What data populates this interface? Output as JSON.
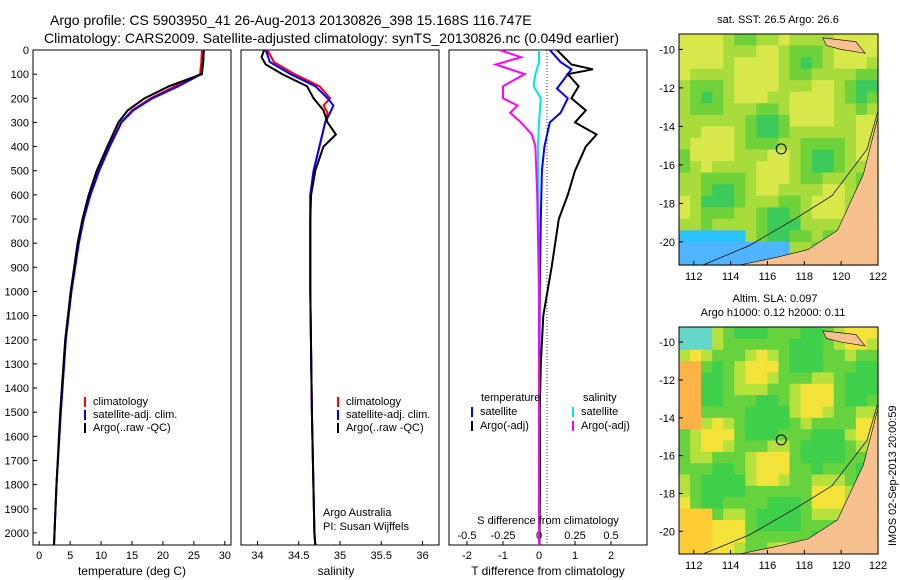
{
  "header": {
    "line1": "Argo profile: CS 5903950_41 26-Aug-2013 20130826_398 15.168S 116.747E",
    "line2": "Climatology: CARS2009. Satellite-adjusted climatology: synTS_20130826.nc (0.049d earlier)"
  },
  "footer_stamp": "IMOS 02-Sep-2013 20:00:59",
  "colors": {
    "climatology": "#ff0000",
    "satellite": "#0000ff",
    "argo": "#000000",
    "salinity_sat": "#00e5e5",
    "salinity_argo": "#ff00ff"
  },
  "chart_data": [
    {
      "type": "line",
      "panel": "temperature",
      "xlabel": "temperature (deg C)",
      "ylabel": "",
      "xlim": [
        -1,
        31
      ],
      "ylim": [
        2050,
        0
      ],
      "xticks": [
        "0",
        "5",
        "10",
        "15",
        "20",
        "25",
        "30"
      ],
      "yticks": [
        "0",
        "100",
        "200",
        "300",
        "400",
        "500",
        "600",
        "700",
        "800",
        "900",
        "1000",
        "1100",
        "1200",
        "1300",
        "1400",
        "1500",
        "1600",
        "1700",
        "1800",
        "1900",
        "2000"
      ],
      "legend": [
        "climatology",
        "satellite-adj. clim.",
        "Argo(..raw -QC)"
      ],
      "series": [
        {
          "name": "climatology",
          "depth": [
            0,
            50,
            100,
            150,
            200,
            250,
            300,
            400,
            500,
            600,
            700,
            800,
            1000,
            1200,
            1500,
            1800,
            2050
          ],
          "values": [
            26.3,
            26.2,
            26.0,
            22.0,
            18.0,
            15.0,
            13.2,
            11.3,
            9.6,
            8.2,
            7.2,
            6.4,
            5.2,
            4.3,
            3.5,
            2.8,
            2.4
          ]
        },
        {
          "name": "satellite-adj. clim.",
          "depth": [
            0,
            50,
            100,
            150,
            200,
            250,
            300,
            400,
            500,
            600,
            700,
            800,
            1000,
            1200,
            1500,
            1800,
            2050
          ],
          "values": [
            26.6,
            26.5,
            26.2,
            22.5,
            18.3,
            15.2,
            13.3,
            11.4,
            9.7,
            8.3,
            7.2,
            6.4,
            5.2,
            4.3,
            3.5,
            2.8,
            2.4
          ]
        },
        {
          "name": "Argo(..raw -QC)",
          "depth": [
            0,
            50,
            100,
            150,
            200,
            250,
            300,
            400,
            500,
            600,
            700,
            800,
            1000,
            1200,
            1500,
            1800,
            2050
          ],
          "values": [
            26.6,
            26.5,
            26.3,
            21.0,
            17.0,
            14.3,
            12.8,
            11.0,
            9.3,
            8.0,
            7.0,
            6.2,
            5.1,
            4.2,
            3.4,
            2.8,
            2.4
          ]
        }
      ]
    },
    {
      "type": "line",
      "panel": "salinity",
      "xlabel": "salinity",
      "xlim": [
        33.8,
        36.2
      ],
      "ylim": [
        2050,
        0
      ],
      "xticks": [
        "34",
        "34.5",
        "35",
        "35.5",
        "36"
      ],
      "legend": [
        "climatology",
        "satellite-adj. clim.",
        "Argo(..raw -QC)"
      ],
      "annotation": [
        "Argo Australia",
        "PI: Susan Wijffels"
      ],
      "series": [
        {
          "name": "climatology",
          "depth": [
            0,
            50,
            100,
            150,
            200,
            230,
            260,
            300,
            400,
            500,
            600,
            700,
            1000,
            1500,
            2000,
            2050
          ],
          "values": [
            34.12,
            34.2,
            34.45,
            34.75,
            34.88,
            34.8,
            34.85,
            34.82,
            34.75,
            34.68,
            34.64,
            34.64,
            34.64,
            34.66,
            34.69,
            34.7
          ]
        },
        {
          "name": "satellite-adj. clim.",
          "depth": [
            0,
            50,
            100,
            150,
            200,
            230,
            260,
            300,
            400,
            500,
            600,
            700,
            1000,
            1500,
            2000,
            2050
          ],
          "values": [
            34.1,
            34.15,
            34.4,
            34.7,
            34.85,
            34.92,
            34.88,
            34.82,
            34.75,
            34.68,
            34.64,
            34.64,
            34.64,
            34.66,
            34.69,
            34.7
          ]
        },
        {
          "name": "Argo(..raw -QC)",
          "depth": [
            0,
            30,
            60,
            100,
            150,
            200,
            250,
            300,
            350,
            400,
            500,
            600,
            700,
            1000,
            1500,
            2000,
            2050
          ],
          "values": [
            34.08,
            34.05,
            34.1,
            34.3,
            34.6,
            34.68,
            34.8,
            34.85,
            34.95,
            34.8,
            34.7,
            34.65,
            34.64,
            34.64,
            34.66,
            34.69,
            34.7
          ]
        }
      ]
    },
    {
      "type": "line",
      "panel": "difference",
      "xlabel": "T difference from climatology",
      "top_axis_label": "S difference from climatology",
      "xlim": [
        -2.5,
        3
      ],
      "ylim": [
        2050,
        0
      ],
      "xticks": [
        "-2",
        "-1",
        "0",
        "1",
        "2"
      ],
      "top_ticks": [
        "-0.5",
        "-0.25",
        "0",
        "0.25",
        "0.5"
      ],
      "legend_temperature": [
        "satellite",
        "Argo(-adj)"
      ],
      "legend_salinity": [
        "satellite",
        "Argo(-adj)"
      ],
      "legend_headers": [
        "temperature",
        "salinity"
      ],
      "series": [
        {
          "name": "satellite",
          "kind": "temperature",
          "depth": [
            0,
            50,
            80,
            120,
            160,
            200,
            260,
            300,
            400,
            500,
            700,
            1000,
            1500,
            2050
          ],
          "values": [
            0.3,
            0.6,
            0.9,
            0.7,
            0.5,
            0.8,
            0.6,
            0.3,
            0.15,
            0.08,
            0.05,
            0.02,
            0.0,
            0.0
          ]
        },
        {
          "name": "Argo(-adj)",
          "kind": "temperature",
          "depth": [
            0,
            60,
            80,
            100,
            150,
            200,
            250,
            300,
            350,
            400,
            500,
            600,
            700,
            900,
            1100,
            1300,
            1500,
            1700,
            2050
          ],
          "values": [
            0.5,
            0.9,
            1.5,
            0.8,
            1.1,
            0.9,
            1.3,
            1.0,
            1.6,
            1.3,
            1.0,
            0.8,
            0.55,
            0.35,
            0.12,
            0.05,
            0.02,
            0.03,
            0.01
          ]
        },
        {
          "name": "satellite",
          "kind": "salinity",
          "depth": [
            0,
            50,
            100,
            150,
            200,
            300,
            400,
            600,
            1000,
            2050
          ],
          "values": [
            0.0,
            0.0,
            -0.1,
            -0.15,
            0.05,
            0.0,
            -0.03,
            -0.02,
            0.0,
            0.0
          ]
        },
        {
          "name": "Argo(-adj)",
          "kind": "salinity",
          "depth": [
            0,
            30,
            60,
            100,
            150,
            200,
            230,
            260,
            300,
            350,
            400,
            600,
            1000,
            2050
          ],
          "values": [
            -1.1,
            -0.5,
            -1.2,
            -0.4,
            -1.0,
            -1.0,
            -0.6,
            -0.8,
            -0.5,
            -0.2,
            -0.1,
            -0.05,
            0.0,
            0.0
          ]
        }
      ]
    },
    {
      "type": "heatmap",
      "panel": "sst-map",
      "title": "sat. SST: 26.5 Argo: 26.6",
      "xticks": [
        "112",
        "114",
        "116",
        "118",
        "120",
        "122"
      ],
      "yticks": [
        "-10",
        "-12",
        "-14",
        "-16",
        "-18",
        "-20"
      ],
      "marker": {
        "lon": 116.747,
        "lat": -15.168
      }
    },
    {
      "type": "heatmap",
      "panel": "sla-map",
      "title_line1": "Altim. SLA: 0.097",
      "title_line2": "Argo h1000: 0.12 h2000: 0.11",
      "xticks": [
        "112",
        "114",
        "116",
        "118",
        "120",
        "122"
      ],
      "yticks": [
        "-10",
        "-12",
        "-14",
        "-16",
        "-18",
        "-20"
      ],
      "marker": {
        "lon": 116.747,
        "lat": -15.168
      }
    }
  ]
}
